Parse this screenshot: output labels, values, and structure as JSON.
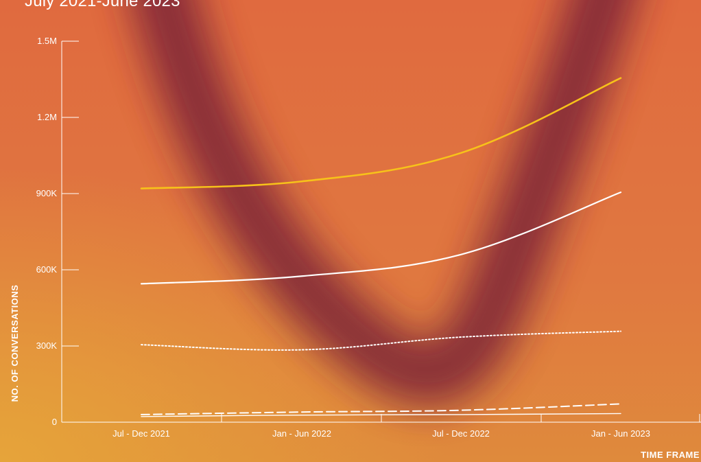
{
  "header": {
    "subtitle": "July 2021-June 2023"
  },
  "colors": {
    "accent_line": "#f7c21a",
    "white_line": "#ffffff",
    "shadow": "#7a2238"
  },
  "chart_data": {
    "type": "line",
    "title": "",
    "xlabel": "TIME FRAME",
    "ylabel": "NO. OF CONVERSATIONS",
    "categories": [
      "Jul - Dec 2021",
      "Jan - Jun 2022",
      "Jul - Dec 2022",
      "Jan - Jun 2023"
    ],
    "yticks": [
      "0",
      "300K",
      "600K",
      "900K",
      "1.2M",
      "1.5M"
    ],
    "ylim": [
      0,
      1500000
    ],
    "grid": false,
    "legend": "none",
    "series": [
      {
        "color": "#f7c21a",
        "style": "solid",
        "values": [
          920000,
          948000,
          1060000,
          1355000
        ]
      },
      {
        "color": "#ffffff",
        "style": "solid",
        "values": [
          545000,
          575000,
          660000,
          905000
        ]
      },
      {
        "color": "#ffffff",
        "style": "dotted",
        "values": [
          305000,
          285000,
          335000,
          358000
        ]
      },
      {
        "color": "#ffffff",
        "style": "dashed",
        "values": [
          30000,
          40000,
          47000,
          72000
        ]
      },
      {
        "color": "#ffffff",
        "style": "solid-thin",
        "values": [
          22000,
          28000,
          30000,
          34000
        ]
      }
    ]
  }
}
